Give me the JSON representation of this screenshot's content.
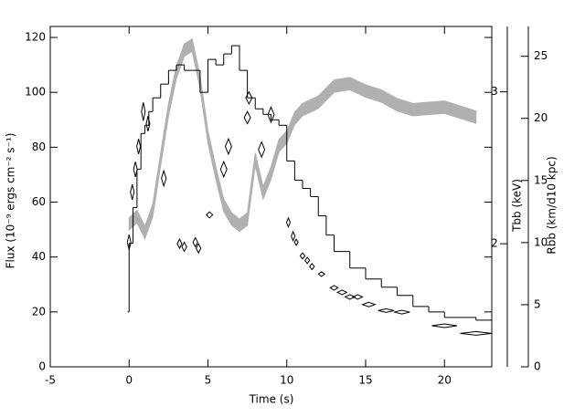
{
  "chart_data": {
    "type": "burst",
    "x_label": "Time (s)",
    "y_label": "Flux (10⁻⁹ ergs cm⁻² s⁻¹)",
    "y2_label": "Rbb (km/d10 kpc)",
    "y3_label": "Tbb (keV)",
    "xlim": [
      -5,
      23
    ],
    "xticks": [
      -5,
      0,
      5,
      10,
      15,
      20
    ],
    "ylim": [
      0,
      124
    ],
    "yticks": [
      0,
      20,
      40,
      60,
      80,
      100,
      120
    ],
    "y2lim": [
      0,
      27.4
    ],
    "y2ticks": [
      0,
      5,
      10,
      15,
      20,
      25
    ],
    "y3lim": [
      1.19,
      3.43
    ],
    "y3ticks": [
      2,
      3
    ],
    "flux": {
      "color": "#000000",
      "bins": [
        -0.1,
        0,
        0.25,
        0.5,
        0.75,
        1,
        1.25,
        1.5,
        2,
        2.5,
        3,
        3.5,
        4,
        4.5,
        5,
        5.5,
        6,
        6.5,
        7,
        7.5,
        8,
        8.5,
        9,
        9.5,
        10,
        10.5,
        11,
        11.5,
        12,
        12.5,
        13,
        14,
        15,
        16,
        17,
        18,
        19,
        20,
        22,
        23
      ],
      "values": [
        20,
        45,
        58,
        72,
        85,
        88,
        93,
        98,
        103,
        108,
        110,
        108,
        108,
        100,
        112,
        110,
        114,
        117,
        108,
        98,
        94,
        92,
        90,
        88,
        75,
        68,
        65,
        62,
        55,
        48,
        42,
        36,
        32,
        29,
        26,
        22,
        20,
        18,
        17
      ]
    },
    "temperature": {
      "color": "#000000",
      "axis": "y3",
      "x": [
        0,
        0.2,
        0.4,
        0.6,
        0.9,
        1.2,
        2.2,
        3.2,
        3.5,
        4.2,
        4.4,
        5.1,
        6.0,
        6.3,
        7.5,
        7.6,
        8.4,
        9.0,
        10.1,
        10.4,
        10.6,
        11.0,
        11.3,
        11.6,
        12.2,
        13.0,
        13.5,
        14.0,
        14.5,
        15.2,
        16.3,
        17.3,
        20.0,
        22.0
      ],
      "values": [
        2.01,
        2.34,
        2.49,
        2.64,
        2.87,
        2.79,
        2.43,
        2.0,
        1.98,
        2.01,
        1.97,
        2.19,
        2.49,
        2.64,
        2.83,
        2.96,
        2.62,
        2.85,
        2.14,
        2.05,
        2.01,
        1.92,
        1.89,
        1.85,
        1.8,
        1.71,
        1.68,
        1.65,
        1.65,
        1.6,
        1.56,
        1.55,
        1.46,
        1.41
      ],
      "xerr": [
        0.1,
        0.1,
        0.1,
        0.1,
        0.1,
        0.1,
        0.15,
        0.15,
        0.15,
        0.15,
        0.15,
        0.2,
        0.2,
        0.2,
        0.2,
        0.2,
        0.2,
        0.2,
        0.1,
        0.1,
        0.1,
        0.15,
        0.15,
        0.15,
        0.2,
        0.25,
        0.3,
        0.3,
        0.3,
        0.4,
        0.5,
        0.5,
        0.8,
        1.0
      ],
      "yerr": [
        0.05,
        0.05,
        0.05,
        0.05,
        0.06,
        0.05,
        0.05,
        0.03,
        0.03,
        0.03,
        0.03,
        0.02,
        0.05,
        0.05,
        0.04,
        0.04,
        0.05,
        0.05,
        0.03,
        0.03,
        0.02,
        0.02,
        0.02,
        0.02,
        0.015,
        0.015,
        0.015,
        0.015,
        0.015,
        0.015,
        0.01,
        0.01,
        0.01,
        0.01
      ]
    },
    "radius": {
      "color": "#b0b0b0",
      "axis": "y2",
      "err": 0.5,
      "x": [
        0,
        0.5,
        1,
        1.5,
        2,
        2.5,
        3,
        3.5,
        4,
        4.5,
        5,
        5.5,
        6,
        6.5,
        7,
        7.5,
        8,
        8.5,
        9,
        9.5,
        10,
        10.5,
        11,
        12,
        13,
        14,
        15,
        16,
        17,
        18,
        20,
        22
      ],
      "values": [
        11.5,
        12.1,
        10.8,
        12.6,
        16.7,
        20.7,
        23.7,
        25.5,
        25.9,
        22.9,
        18.5,
        15.6,
        13.0,
        11.9,
        11.4,
        11.9,
        16.7,
        14.0,
        15.6,
        17.8,
        18.5,
        20.0,
        20.7,
        21.3,
        22.6,
        22.8,
        22.2,
        21.8,
        21.1,
        20.7,
        20.9,
        20.1
      ]
    }
  }
}
